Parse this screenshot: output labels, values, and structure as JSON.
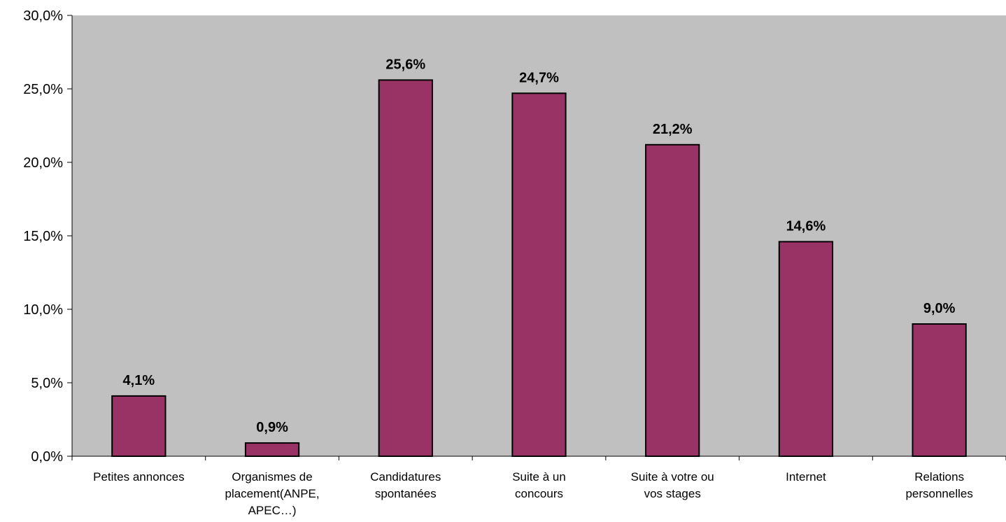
{
  "chart_data": {
    "type": "bar",
    "title": "",
    "xlabel": "",
    "ylabel": "",
    "ylim": [
      0,
      30
    ],
    "y_ticks": [
      "0,0%",
      "5,0%",
      "10,0%",
      "15,0%",
      "20,0%",
      "25,0%",
      "30,0%"
    ],
    "categories": [
      [
        "Petites annonces"
      ],
      [
        "Organismes de",
        "placement(ANPE,",
        "APEC…)"
      ],
      [
        "Candidatures",
        "spontanées"
      ],
      [
        "Suite à un",
        "concours"
      ],
      [
        "Suite à votre ou",
        "vos stages"
      ],
      [
        "Internet"
      ],
      [
        "Relations",
        "personnelles"
      ]
    ],
    "values": [
      4.1,
      0.9,
      25.6,
      24.7,
      21.2,
      14.6,
      9.0
    ],
    "data_labels": [
      "4,1%",
      "0,9%",
      "25,6%",
      "24,7%",
      "21,2%",
      "14,6%",
      "9,0%"
    ],
    "grid": false,
    "legend": "none",
    "colors": {
      "bar": "#993366",
      "plot_background": "#c0c0c0",
      "bar_outline": "#000000"
    }
  }
}
